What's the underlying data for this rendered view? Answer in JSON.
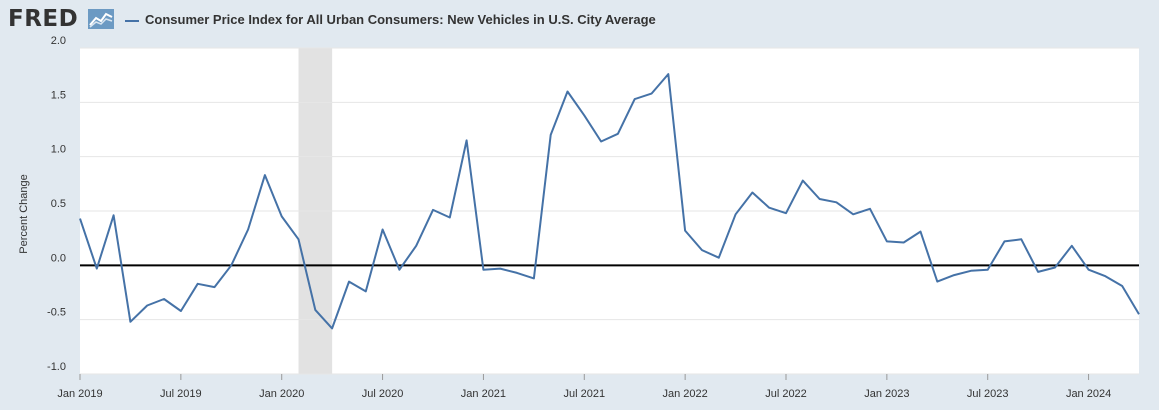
{
  "header": {
    "logo_text": "FRED",
    "series_title": "Consumer Price Index for All Urban Consumers: New Vehicles in U.S. City Average"
  },
  "colors": {
    "series": "#4572a7",
    "recession": "#e2e2e2",
    "zero_line": "#000000",
    "grid": "#e6e6e6",
    "plot_bg": "#ffffff",
    "page_bg": "#e1e9f0"
  },
  "chart_data": {
    "type": "line",
    "title": "Consumer Price Index for All Urban Consumers: New Vehicles in U.S. City Average",
    "xlabel": "",
    "ylabel": "Percent Change",
    "ylim": [
      -1.0,
      2.0
    ],
    "yticks": [
      -1.0,
      -0.5,
      0.0,
      0.5,
      1.0,
      1.5,
      2.0
    ],
    "ytick_labels": [
      "-1.0",
      "-0.5",
      "0.0",
      "0.5",
      "1.0",
      "1.5",
      "2.0"
    ],
    "xticks": [
      {
        "index": 0,
        "label": "Jan 2019"
      },
      {
        "index": 6,
        "label": "Jul 2019"
      },
      {
        "index": 12,
        "label": "Jan 2020"
      },
      {
        "index": 18,
        "label": "Jul 2020"
      },
      {
        "index": 24,
        "label": "Jan 2021"
      },
      {
        "index": 30,
        "label": "Jul 2021"
      },
      {
        "index": 36,
        "label": "Jan 2022"
      },
      {
        "index": 42,
        "label": "Jul 2022"
      },
      {
        "index": 48,
        "label": "Jan 2023"
      },
      {
        "index": 54,
        "label": "Jul 2023"
      },
      {
        "index": 60,
        "label": "Jan 2024"
      }
    ],
    "recession": {
      "start_index": 13,
      "end_index": 15
    },
    "grid": true,
    "series": [
      {
        "name": "Consumer Price Index for All Urban Consumers: New Vehicles in U.S. City Average",
        "start": "2019-01",
        "values": [
          0.43,
          -0.03,
          0.46,
          -0.52,
          -0.37,
          -0.31,
          -0.42,
          -0.17,
          -0.2,
          0.0,
          0.33,
          0.83,
          0.45,
          0.24,
          -0.41,
          -0.58,
          -0.15,
          -0.24,
          0.33,
          -0.04,
          0.18,
          0.51,
          0.44,
          1.15,
          -0.04,
          -0.03,
          -0.07,
          -0.12,
          1.2,
          1.6,
          1.38,
          1.14,
          1.21,
          1.53,
          1.58,
          1.76,
          0.32,
          0.14,
          0.07,
          0.47,
          0.67,
          0.53,
          0.48,
          0.78,
          0.61,
          0.58,
          0.47,
          0.52,
          0.22,
          0.21,
          0.31,
          -0.15,
          -0.09,
          -0.05,
          -0.04,
          0.22,
          0.24,
          -0.06,
          -0.02,
          0.18,
          -0.04,
          -0.1,
          -0.19,
          -0.45
        ]
      }
    ]
  }
}
